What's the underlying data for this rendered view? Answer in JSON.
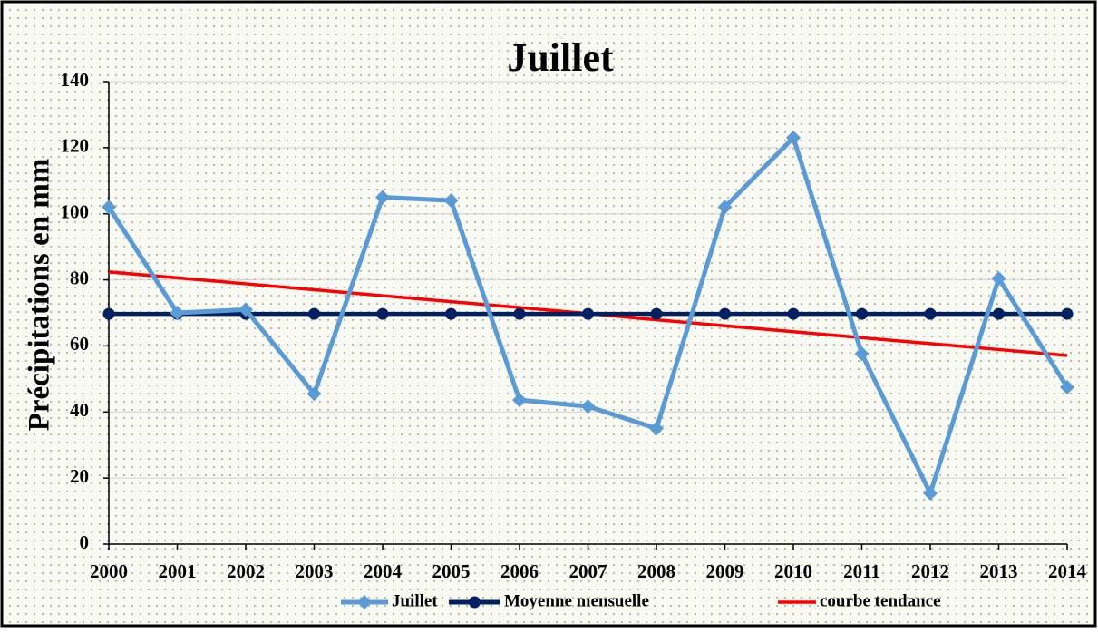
{
  "chart_data": {
    "type": "line",
    "title": "Juillet",
    "y_label": "Précipitations en mm",
    "categories": [
      "2000",
      "2001",
      "2002",
      "2003",
      "2004",
      "2005",
      "2006",
      "2007",
      "2008",
      "2009",
      "2010",
      "2011",
      "2012",
      "2013",
      "2014"
    ],
    "series": [
      {
        "name": "Juillet",
        "color": "#5b9bd5",
        "marker": "diamond",
        "values": [
          102,
          70,
          71,
          45.5,
          105,
          104,
          43.6,
          41.7,
          35,
          102,
          123,
          57.6,
          15.4,
          80.4,
          47.5
        ]
      },
      {
        "name": "Moyenne mensuelle",
        "color": "#002060",
        "marker": "circle",
        "values": [
          69.7,
          69.7,
          69.7,
          69.7,
          69.7,
          69.7,
          69.7,
          69.7,
          69.7,
          69.7,
          69.7,
          69.7,
          69.7,
          69.7,
          69.7
        ]
      },
      {
        "name": "courbe tendance",
        "color": "#ff0000",
        "marker": "none",
        "values": [
          82.4,
          80.6,
          78.8,
          77.0,
          75.2,
          73.4,
          71.6,
          69.8,
          67.9,
          66.1,
          64.3,
          62.5,
          60.7,
          58.9,
          57.1
        ]
      }
    ],
    "ylim": [
      0,
      140
    ],
    "yticks": [
      0,
      20,
      40,
      60,
      80,
      100,
      120,
      140
    ],
    "grid": true,
    "legend": "bottom"
  }
}
